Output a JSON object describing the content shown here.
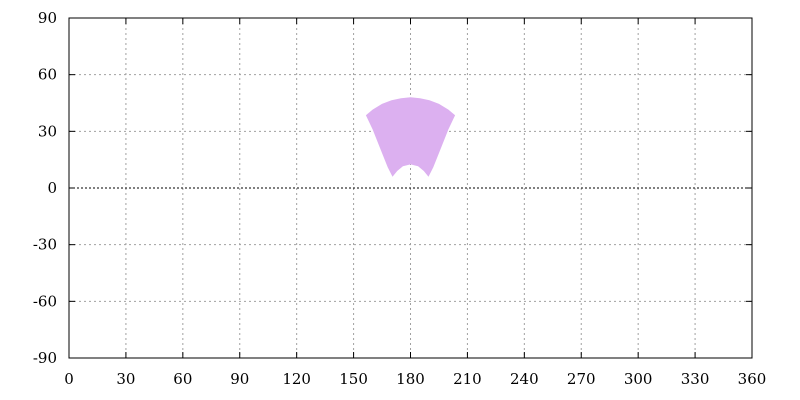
{
  "chart_data": {
    "type": "area",
    "title": "",
    "xlabel": "",
    "ylabel": "",
    "xlim": [
      0,
      360
    ],
    "ylim": [
      -90,
      90
    ],
    "x_ticks": [
      0,
      30,
      60,
      90,
      120,
      150,
      180,
      210,
      240,
      270,
      300,
      330,
      360
    ],
    "y_ticks": [
      -90,
      -60,
      -30,
      0,
      30,
      60,
      90
    ],
    "x_tick_labels": [
      "0",
      "30",
      "60",
      "90",
      "120",
      "150",
      "180",
      "210",
      "240",
      "270",
      "300",
      "330",
      "360"
    ],
    "y_tick_labels": [
      "-90",
      "-60",
      "-30",
      "0",
      "30",
      "60",
      "90"
    ],
    "grid": true,
    "zero_line": true,
    "series": [
      {
        "fill_color": "#dcb0f0",
        "outline": [
          [
            156.5,
            38.5
          ],
          [
            160,
            41.5
          ],
          [
            165,
            44.5
          ],
          [
            170,
            46.5
          ],
          [
            175,
            47.5
          ],
          [
            180,
            48
          ],
          [
            185,
            47.5
          ],
          [
            190,
            46.5
          ],
          [
            195,
            44.5
          ],
          [
            200,
            41.5
          ],
          [
            203.5,
            38.5
          ],
          [
            200,
            31
          ],
          [
            196,
            21
          ],
          [
            192,
            11
          ],
          [
            189.5,
            6
          ],
          [
            187,
            9
          ],
          [
            184,
            11.5
          ],
          [
            180,
            12.5
          ],
          [
            176,
            11.5
          ],
          [
            173,
            9
          ],
          [
            170.5,
            6
          ],
          [
            168,
            11
          ],
          [
            164,
            21
          ],
          [
            160,
            31
          ]
        ]
      }
    ]
  }
}
